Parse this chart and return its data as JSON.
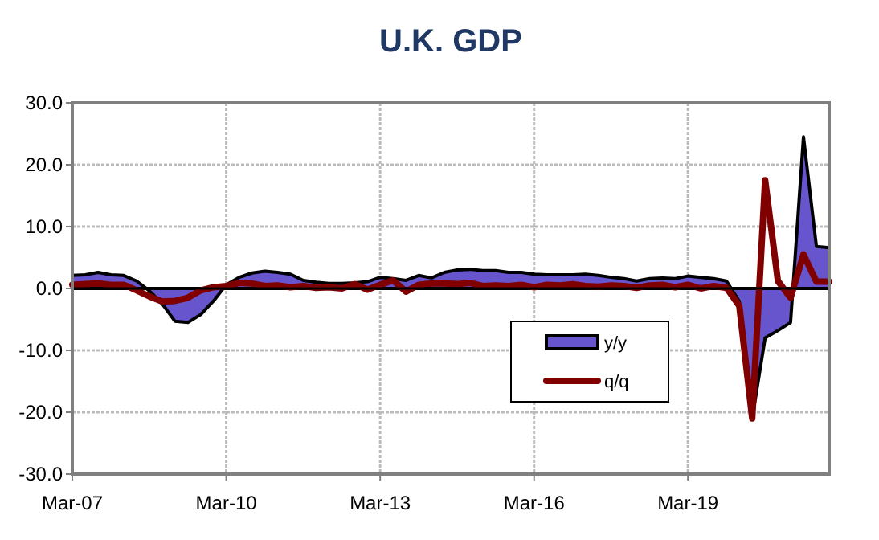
{
  "chart_data": {
    "type": "area",
    "title": "U.K. GDP",
    "grid": true,
    "legend": "bottom right",
    "x": [
      "2007-03",
      "2007-06",
      "2007-09",
      "2007-12",
      "2008-03",
      "2008-06",
      "2008-09",
      "2008-12",
      "2009-03",
      "2009-06",
      "2009-09",
      "2009-12",
      "2010-03",
      "2010-06",
      "2010-09",
      "2010-12",
      "2011-03",
      "2011-06",
      "2011-09",
      "2011-12",
      "2012-03",
      "2012-06",
      "2012-09",
      "2012-12",
      "2013-03",
      "2013-06",
      "2013-09",
      "2013-12",
      "2014-03",
      "2014-06",
      "2014-09",
      "2014-12",
      "2015-03",
      "2015-06",
      "2015-09",
      "2015-12",
      "2016-03",
      "2016-06",
      "2016-09",
      "2016-12",
      "2017-03",
      "2017-06",
      "2017-09",
      "2017-12",
      "2018-03",
      "2018-06",
      "2018-09",
      "2018-12",
      "2019-03",
      "2019-06",
      "2019-09",
      "2019-12",
      "2020-03",
      "2020-06",
      "2020-09",
      "2020-12",
      "2021-03",
      "2021-06",
      "2021-09",
      "2021-12"
    ],
    "xlim": [
      "2007-03",
      "2021-12"
    ],
    "xticks": [
      {
        "value": "2007-03",
        "label": "Mar-07"
      },
      {
        "value": "2010-03",
        "label": "Mar-10"
      },
      {
        "value": "2013-03",
        "label": "Mar-13"
      },
      {
        "value": "2016-03",
        "label": "Mar-16"
      },
      {
        "value": "2019-03",
        "label": "Mar-19"
      }
    ],
    "ylim": [
      -30,
      30
    ],
    "yticks": [
      {
        "value": -30,
        "label": "-30.0"
      },
      {
        "value": -20,
        "label": "-20.0"
      },
      {
        "value": -10,
        "label": "-10.0"
      },
      {
        "value": 0,
        "label": "0.0"
      },
      {
        "value": 10,
        "label": "10.0"
      },
      {
        "value": 20,
        "label": "20.0"
      },
      {
        "value": 30,
        "label": "30.0"
      }
    ],
    "series": [
      {
        "name": "y/y",
        "color": "#6655cc",
        "values": [
          2.1,
          2.2,
          2.6,
          2.2,
          2.1,
          1.2,
          -0.4,
          -2.5,
          -5.3,
          -5.5,
          -4.2,
          -2.0,
          0.6,
          1.8,
          2.5,
          2.8,
          2.6,
          2.3,
          1.3,
          1.0,
          0.8,
          0.8,
          0.9,
          1.1,
          1.8,
          1.6,
          1.3,
          2.1,
          1.7,
          2.6,
          3.0,
          3.1,
          2.9,
          2.9,
          2.6,
          2.6,
          2.3,
          2.2,
          2.2,
          2.2,
          2.3,
          2.1,
          1.8,
          1.6,
          1.2,
          1.6,
          1.7,
          1.6,
          2.0,
          1.8,
          1.6,
          1.2,
          -2.1,
          -21.0,
          -8.0,
          -6.8,
          -5.5,
          24.5,
          6.8,
          6.6
        ]
      },
      {
        "name": "q/q",
        "type": "line",
        "color": "#800000",
        "values": [
          0.6,
          0.7,
          0.8,
          0.6,
          0.6,
          -0.3,
          -1.3,
          -2.1,
          -2.0,
          -1.5,
          -0.3,
          0.2,
          0.4,
          0.9,
          0.8,
          0.4,
          0.5,
          0.2,
          0.4,
          0.1,
          0.2,
          0.0,
          0.7,
          -0.2,
          0.6,
          1.3,
          -0.5,
          0.6,
          0.8,
          0.8,
          0.7,
          0.9,
          0.4,
          0.5,
          0.4,
          0.6,
          0.2,
          0.6,
          0.5,
          0.7,
          0.4,
          0.3,
          0.5,
          0.4,
          0.1,
          0.5,
          0.6,
          0.2,
          0.6,
          0.0,
          0.4,
          0.1,
          -2.8,
          -21.0,
          17.5,
          1.2,
          -1.5,
          5.5,
          1.1,
          1.1
        ]
      }
    ]
  }
}
